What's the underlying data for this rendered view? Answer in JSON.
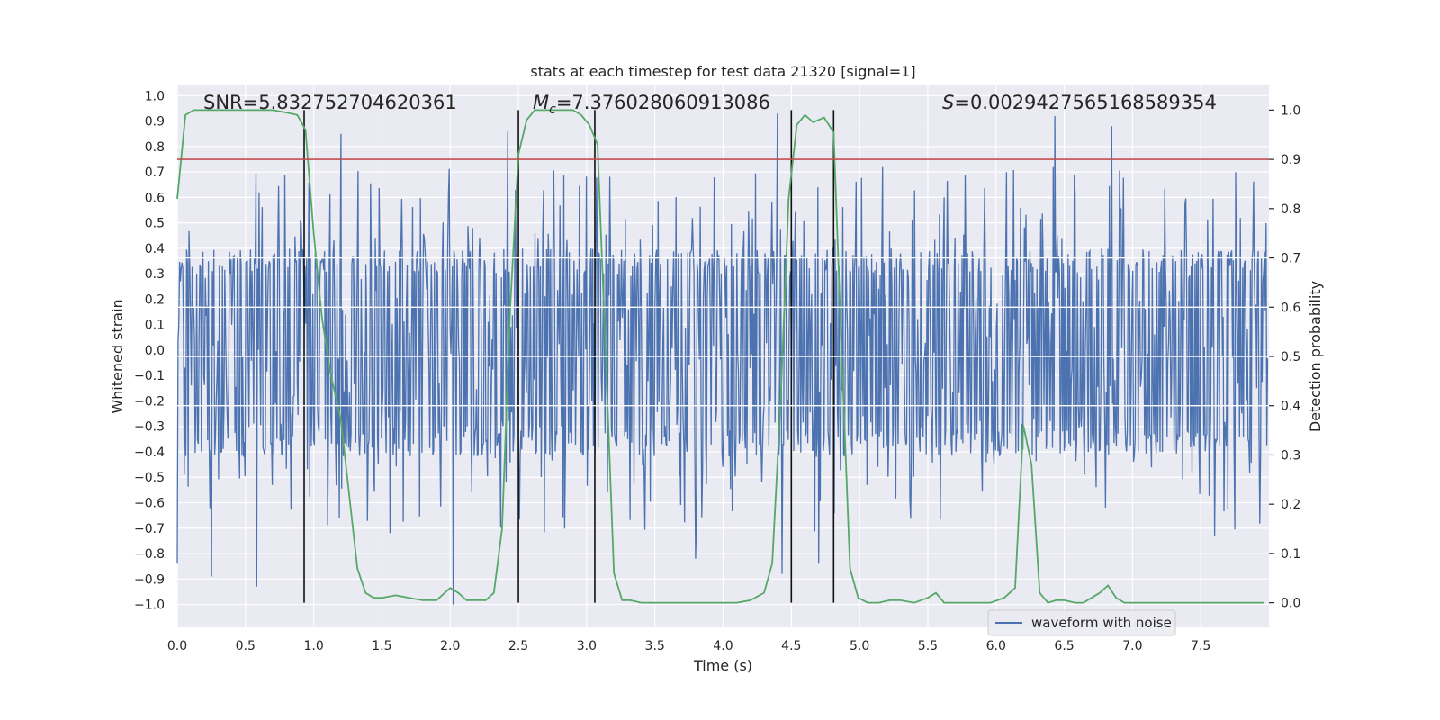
{
  "chart_data": {
    "type": "line",
    "title": "stats at each timestep for test data 21320 [signal=1]",
    "xlabel": "Time (s)",
    "ylabel": "Whitened strain",
    "y2label": "Detection probability",
    "xlim": [
      0.0,
      8.0
    ],
    "ylim": [
      -1.09,
      1.04
    ],
    "y2lim": [
      -0.05,
      1.05
    ],
    "xticks": [
      "0.0",
      "0.5",
      "1.0",
      "1.5",
      "2.0",
      "2.5",
      "3.0",
      "3.5",
      "4.0",
      "4.5",
      "5.0",
      "5.5",
      "6.0",
      "6.5",
      "7.0",
      "7.5"
    ],
    "xtick_values": [
      0.0,
      0.5,
      1.0,
      1.5,
      2.0,
      2.5,
      3.0,
      3.5,
      4.0,
      4.5,
      5.0,
      5.5,
      6.0,
      6.5,
      7.0,
      7.5
    ],
    "yticks": [
      "1.0",
      "0.9",
      "0.8",
      "0.7",
      "0.6",
      "0.5",
      "0.4",
      "0.3",
      "0.2",
      "0.1",
      "0.0",
      "-0.1",
      "-0.2",
      "-0.3",
      "-0.4",
      "-0.5",
      "-0.6",
      "-0.7",
      "-0.8",
      "-0.9",
      "-1.0"
    ],
    "ytick_values": [
      1.0,
      0.9,
      0.8,
      0.7,
      0.6,
      0.5,
      0.4,
      0.3,
      0.2,
      0.1,
      0.0,
      -0.1,
      -0.2,
      -0.3,
      -0.4,
      -0.5,
      -0.6,
      -0.7,
      -0.8,
      -0.9,
      -1.0
    ],
    "y2ticks": [
      "1.0",
      "0.9",
      "0.8",
      "0.7",
      "0.6",
      "0.5",
      "0.4",
      "0.3",
      "0.2",
      "0.1",
      "0.0"
    ],
    "y2tick_values": [
      1.0,
      0.9,
      0.8,
      0.7,
      0.6,
      0.5,
      0.4,
      0.3,
      0.2,
      0.1,
      0.0
    ],
    "annotations": {
      "snr": "SNR=5.832752704620361",
      "mc_symbol": "M",
      "mc_sub": "c",
      "mc_value": "=7.376028060913086",
      "s_symbol": "S",
      "s_value": "=0.0029427565168589354"
    },
    "legend": {
      "label": "waveform with noise",
      "placement": "lower-right"
    },
    "threshold": {
      "value": 0.9,
      "axis": "y2",
      "color": "#c44e52"
    },
    "vertical_markers": [
      0.93,
      2.5,
      3.06,
      4.5,
      4.81
    ],
    "waveform": {
      "name": "waveform with noise",
      "color": "#4c72b0",
      "samples": 1400,
      "typical_range": [
        -0.42,
        0.4
      ],
      "spike_extremes": [
        {
          "x": 0.0,
          "y": -0.84
        },
        {
          "x": 0.25,
          "y": -0.89
        },
        {
          "x": 0.58,
          "y": -0.93
        },
        {
          "x": 1.2,
          "y": 0.85
        },
        {
          "x": 2.02,
          "y": -1.0
        },
        {
          "x": 2.42,
          "y": 0.86
        },
        {
          "x": 4.4,
          "y": 0.93
        },
        {
          "x": 4.43,
          "y": -0.88
        },
        {
          "x": 4.7,
          "y": -0.84
        },
        {
          "x": 6.43,
          "y": 0.92
        },
        {
          "x": 6.85,
          "y": 0.88
        },
        {
          "x": 7.6,
          "y": 0.85
        },
        {
          "x": 3.8,
          "y": -0.82
        },
        {
          "x": 7.6,
          "y": -0.73
        }
      ]
    },
    "series": [
      {
        "name": "Detection probability",
        "axis": "y2",
        "color": "#55a868",
        "x": [
          0.0,
          0.06,
          0.12,
          0.2,
          0.3,
          0.4,
          0.5,
          0.6,
          0.7,
          0.8,
          0.88,
          0.94,
          1.0,
          1.06,
          1.12,
          1.2,
          1.26,
          1.32,
          1.38,
          1.44,
          1.5,
          1.6,
          1.7,
          1.8,
          1.9,
          2.0,
          2.06,
          2.12,
          2.18,
          2.26,
          2.32,
          2.38,
          2.44,
          2.5,
          2.56,
          2.62,
          2.7,
          2.8,
          2.9,
          2.96,
          3.02,
          3.08,
          3.14,
          3.2,
          3.26,
          3.32,
          3.4,
          3.5,
          3.6,
          3.7,
          3.8,
          3.9,
          4.0,
          4.1,
          4.2,
          4.3,
          4.36,
          4.42,
          4.48,
          4.54,
          4.6,
          4.66,
          4.74,
          4.81,
          4.87,
          4.93,
          4.99,
          5.06,
          5.14,
          5.22,
          5.3,
          5.4,
          5.5,
          5.56,
          5.62,
          5.68,
          5.76,
          5.86,
          5.96,
          6.06,
          6.14,
          6.2,
          6.26,
          6.32,
          6.38,
          6.44,
          6.5,
          6.58,
          6.64,
          6.7,
          6.76,
          6.82,
          6.88,
          6.94,
          7.0,
          7.2,
          7.4,
          7.6,
          7.8,
          7.96
        ],
        "values": [
          0.82,
          0.99,
          1.0,
          1.0,
          1.0,
          1.0,
          1.0,
          1.0,
          1.0,
          0.995,
          0.99,
          0.96,
          0.75,
          0.58,
          0.47,
          0.37,
          0.22,
          0.07,
          0.02,
          0.01,
          0.01,
          0.015,
          0.01,
          0.005,
          0.005,
          0.03,
          0.02,
          0.005,
          0.005,
          0.005,
          0.02,
          0.15,
          0.6,
          0.91,
          0.98,
          1.0,
          1.0,
          1.0,
          1.0,
          0.99,
          0.97,
          0.93,
          0.5,
          0.06,
          0.005,
          0.005,
          0.0,
          0.0,
          0.0,
          0.0,
          0.0,
          0.0,
          0.0,
          0.0,
          0.005,
          0.02,
          0.08,
          0.4,
          0.82,
          0.97,
          0.99,
          0.975,
          0.985,
          0.955,
          0.5,
          0.07,
          0.01,
          0.0,
          0.0,
          0.005,
          0.005,
          0.0,
          0.01,
          0.02,
          0.0,
          0.0,
          0.0,
          0.0,
          0.0,
          0.01,
          0.03,
          0.36,
          0.28,
          0.02,
          0.0,
          0.005,
          0.005,
          0.0,
          0.0,
          0.01,
          0.02,
          0.035,
          0.01,
          0.0,
          0.0,
          0.0,
          0.0,
          0.0,
          0.0,
          0.0
        ]
      }
    ]
  }
}
